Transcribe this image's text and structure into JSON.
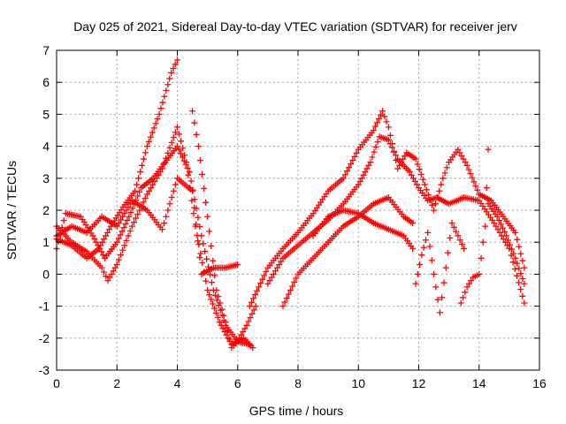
{
  "chart_data": {
    "type": "scatter",
    "title": "Day 025 of 2021, Sidereal Day-to-day VTEC variation (SDTVAR) for receiver jerv",
    "xlabel": "GPS time / hours",
    "ylabel": "SDTVAR / TECUs",
    "xlim": [
      0,
      16
    ],
    "ylim": [
      -3,
      7
    ],
    "xticks": [
      0,
      2,
      4,
      6,
      8,
      10,
      12,
      14,
      16
    ],
    "yticks": [
      -3,
      -2,
      -1,
      0,
      1,
      2,
      3,
      4,
      5,
      6,
      7
    ],
    "grid": true,
    "marker": "+",
    "color": "#ff0000",
    "series": [
      {
        "x": [
          0.0,
          0.5,
          1.0,
          1.4,
          1.8,
          2.2,
          2.6,
          3.0,
          3.4,
          3.8,
          4.0
        ],
        "y": [
          1.1,
          0.9,
          0.5,
          0.8,
          1.5,
          2.1,
          2.6,
          4.0,
          5.0,
          6.3,
          6.7
        ]
      },
      {
        "x": [
          0.0,
          0.5,
          1.0,
          1.5,
          1.7,
          2.0,
          2.5,
          3.0,
          3.5,
          4.0,
          4.3,
          4.6,
          5.0,
          5.4,
          5.8,
          6.2,
          6.5
        ],
        "y": [
          1.5,
          1.0,
          0.7,
          0.2,
          -0.2,
          0.3,
          1.5,
          2.5,
          3.3,
          4.6,
          3.5,
          1.5,
          -0.5,
          -1.5,
          -2.2,
          -2.0,
          -2.3
        ]
      },
      {
        "x": [
          0.0,
          0.3,
          0.8,
          1.2,
          1.6,
          2.0,
          2.4,
          2.8,
          3.2,
          3.6,
          4.0,
          4.4,
          4.8,
          5.2,
          5.6,
          6.0,
          6.4
        ],
        "y": [
          0.8,
          1.9,
          1.8,
          1.2,
          0.5,
          1.0,
          1.8,
          2.7,
          3.0,
          3.5,
          4.0,
          3.2,
          1.2,
          -0.5,
          -1.6,
          -2.1,
          -2.2
        ]
      },
      {
        "x": [
          0.0,
          0.5,
          1.0,
          1.5,
          2.0,
          2.5,
          3.0,
          3.5,
          4.0,
          4.5,
          4.8,
          5.2,
          5.6,
          6.0
        ],
        "y": [
          1.2,
          1.5,
          1.3,
          1.8,
          1.5,
          2.3,
          2.0,
          1.4,
          3.0,
          2.6,
          0.0,
          0.2,
          0.2,
          0.3
        ]
      },
      {
        "x": [
          4.5,
          4.7,
          5.0,
          5.3,
          5.6,
          5.8,
          6.0,
          6.3,
          6.6
        ],
        "y": [
          5.1,
          4.0,
          1.8,
          -0.5,
          -1.5,
          -2.3,
          -2.1,
          -1.6,
          -1.0
        ]
      },
      {
        "x": [
          6.4,
          7.0,
          7.5,
          8.0,
          8.5,
          9.0,
          9.5,
          10.0,
          10.5,
          10.8,
          11.0,
          11.3,
          11.6,
          11.9,
          12.2,
          12.5,
          12.8,
          13.0,
          13.3,
          13.6,
          14.0,
          14.4,
          14.8,
          15.2,
          15.5
        ],
        "y": [
          -1.0,
          0.2,
          0.8,
          1.3,
          1.9,
          2.6,
          3.0,
          3.9,
          4.5,
          5.1,
          4.6,
          3.3,
          3.8,
          3.6,
          2.8,
          2.0,
          3.0,
          3.5,
          3.9,
          3.4,
          2.5,
          2.3,
          1.8,
          1.3,
          0.2
        ]
      },
      {
        "x": [
          7.0,
          7.5,
          8.0,
          8.5,
          9.0,
          9.5,
          10.0,
          10.4,
          10.7,
          11.0,
          11.3,
          11.7,
          12.0,
          12.3,
          12.6,
          13.0,
          13.5,
          14.0,
          14.5,
          15.0,
          15.5
        ],
        "y": [
          -0.3,
          0.5,
          0.9,
          1.3,
          1.7,
          2.2,
          2.8,
          3.5,
          4.3,
          4.2,
          3.6,
          3.2,
          2.7,
          2.3,
          2.4,
          2.2,
          2.4,
          2.3,
          1.6,
          0.8,
          -0.9
        ]
      },
      {
        "x": [
          7.5,
          8.0,
          8.5,
          9.0,
          9.5,
          10.0,
          10.5,
          11.0,
          11.5,
          11.8
        ],
        "y": [
          -1.0,
          0.0,
          0.5,
          1.0,
          1.5,
          1.8,
          2.2,
          2.4,
          1.8,
          1.6
        ]
      },
      {
        "x": [
          8.5,
          9.0,
          9.5,
          10.0,
          10.5,
          11.0,
          11.5,
          11.8
        ],
        "y": [
          1.2,
          1.8,
          2.0,
          1.9,
          1.6,
          1.4,
          1.2,
          0.8
        ]
      },
      {
        "x": [
          11.9,
          12.1,
          12.3,
          12.5,
          12.7,
          12.9,
          13.1,
          13.3,
          13.5
        ],
        "y": [
          -0.3,
          0.6,
          1.3,
          0.0,
          -1.2,
          0.2,
          1.6,
          1.2,
          0.8
        ]
      },
      {
        "x": [
          13.4,
          13.6,
          13.8,
          14.0,
          14.2,
          14.3
        ],
        "y": [
          -0.9,
          -0.4,
          -0.1,
          0.0,
          1.5,
          3.9
        ]
      },
      {
        "x": [
          14.3,
          14.6,
          14.9,
          15.2,
          15.5
        ],
        "y": [
          2.2,
          1.8,
          1.2,
          0.5,
          -0.3
        ]
      }
    ]
  }
}
